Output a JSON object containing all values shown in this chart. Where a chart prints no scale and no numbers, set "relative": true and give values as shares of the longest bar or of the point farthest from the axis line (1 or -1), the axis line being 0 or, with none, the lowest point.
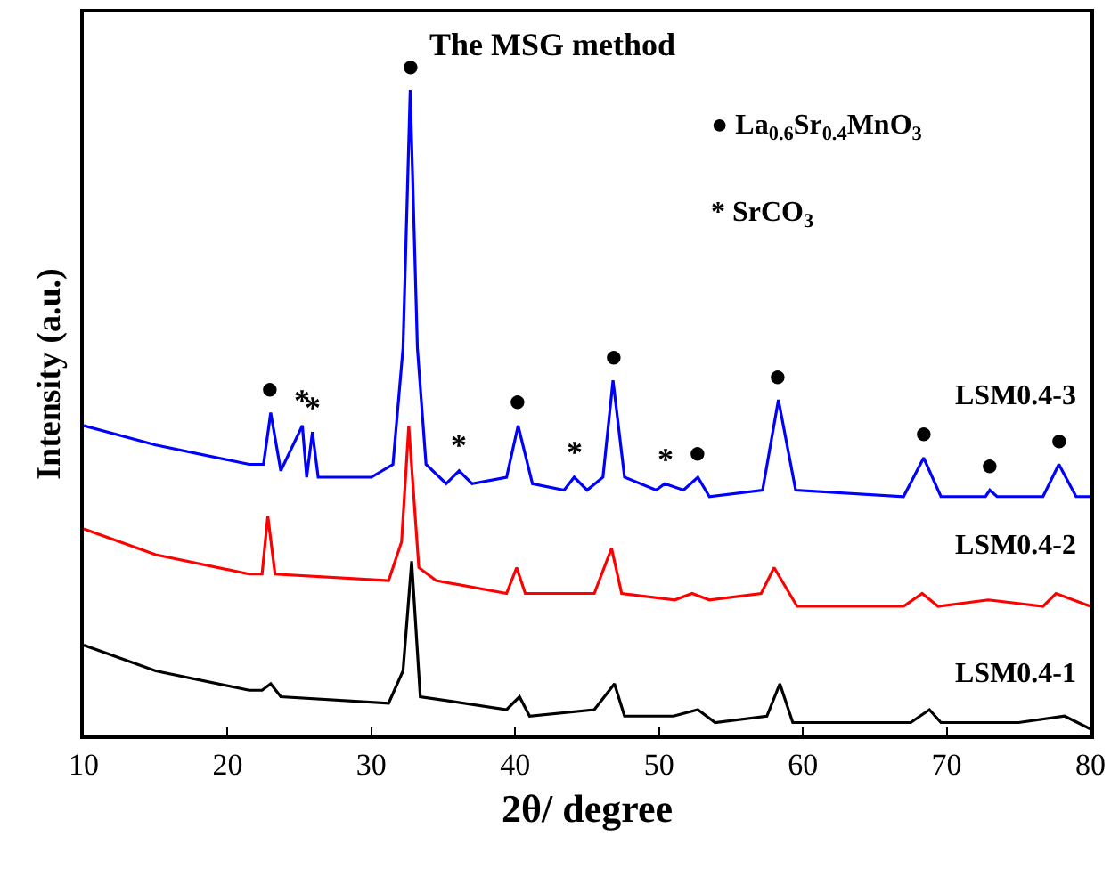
{
  "chart_data": {
    "type": "line",
    "relative": true,
    "xlabel": "2θ/ degree",
    "ylabel": "Intensity (a.u.)",
    "legend": false,
    "marker": "none",
    "line_style": "solid",
    "xlim": [
      10,
      80
    ],
    "xticks": [
      10,
      20,
      30,
      40,
      50,
      60,
      70,
      80
    ],
    "series": [
      {
        "name": "LSM0.4-3",
        "color": "#0000ff",
        "x": [
          10,
          15,
          21.5,
          22.5,
          23.0,
          23.7,
          25.2,
          25.5,
          25.9,
          26.3,
          30,
          31.5,
          32.2,
          32.7,
          33.2,
          33.8,
          35.2,
          36.1,
          37.0,
          39.4,
          40.2,
          41.2,
          43.4,
          44.1,
          45.0,
          46.1,
          46.8,
          47.6,
          49.8,
          50.4,
          51.7,
          52.7,
          53.5,
          57.2,
          58.3,
          59.5,
          67.0,
          68.4,
          69.6,
          72.7,
          73.0,
          73.5,
          76.7,
          77.8,
          79.0,
          80
        ],
        "values": [
          0.48,
          0.45,
          0.42,
          0.42,
          0.5,
          0.41,
          0.48,
          0.4,
          0.47,
          0.4,
          0.4,
          0.42,
          0.6,
          1.0,
          0.6,
          0.42,
          0.39,
          0.41,
          0.39,
          0.4,
          0.48,
          0.39,
          0.38,
          0.4,
          0.38,
          0.4,
          0.55,
          0.4,
          0.38,
          0.39,
          0.38,
          0.4,
          0.37,
          0.38,
          0.52,
          0.38,
          0.37,
          0.43,
          0.37,
          0.37,
          0.38,
          0.37,
          0.37,
          0.42,
          0.37,
          0.37
        ]
      },
      {
        "name": "LSM0.4-2",
        "color": "#ff0000",
        "x": [
          10,
          15,
          21.5,
          22.4,
          22.8,
          23.3,
          31.2,
          32.1,
          32.6,
          33.3,
          34.5,
          39.4,
          40.1,
          40.7,
          45.5,
          46.7,
          47.4,
          51.1,
          52.3,
          53.5,
          57.1,
          58.0,
          59.6,
          67.0,
          68.3,
          69.4,
          72.9,
          76.7,
          77.6,
          80
        ],
        "values": [
          0.32,
          0.28,
          0.25,
          0.25,
          0.34,
          0.25,
          0.24,
          0.3,
          0.48,
          0.26,
          0.24,
          0.22,
          0.26,
          0.22,
          0.22,
          0.29,
          0.22,
          0.21,
          0.22,
          0.21,
          0.22,
          0.26,
          0.2,
          0.2,
          0.22,
          0.2,
          0.21,
          0.2,
          0.22,
          0.2
        ]
      },
      {
        "name": "LSM0.4-1",
        "color": "#000000",
        "x": [
          10,
          15,
          21.5,
          22.4,
          23.0,
          23.7,
          31.2,
          32.2,
          32.8,
          33.4,
          39.4,
          40.3,
          41.0,
          45.5,
          46.9,
          47.6,
          51.0,
          52.7,
          53.9,
          57.5,
          58.4,
          59.3,
          67.5,
          68.8,
          69.6,
          75,
          78.2,
          80
        ],
        "values": [
          0.14,
          0.1,
          0.07,
          0.07,
          0.08,
          0.06,
          0.05,
          0.1,
          0.27,
          0.06,
          0.04,
          0.06,
          0.03,
          0.04,
          0.08,
          0.03,
          0.03,
          0.04,
          0.02,
          0.03,
          0.08,
          0.02,
          0.02,
          0.04,
          0.02,
          0.02,
          0.03,
          0.01
        ]
      }
    ],
    "annotations": [
      "The MSG method",
      "● La$_{0.6}$Sr$_{0.4}$MnO$_{3}$",
      "* SrCO$_{3}$",
      {
        "text": "●",
        "x": 23.0,
        "y": 0.5
      },
      {
        "text": "*",
        "x": 25.2,
        "y": 0.48
      },
      {
        "text": "*",
        "x": 25.9,
        "y": 0.47
      },
      {
        "text": "●",
        "x": 32.7,
        "y": 1.0
      },
      {
        "text": "*",
        "x": 36.1,
        "y": 0.41
      },
      {
        "text": "●",
        "x": 40.2,
        "y": 0.48
      },
      {
        "text": "*",
        "x": 44.1,
        "y": 0.4
      },
      {
        "text": "●",
        "x": 46.8,
        "y": 0.55
      },
      {
        "text": "*",
        "x": 50.4,
        "y": 0.39
      },
      {
        "text": "●",
        "x": 52.7,
        "y": 0.4
      },
      {
        "text": "●",
        "x": 58.3,
        "y": 0.52
      },
      {
        "text": "●",
        "x": 68.4,
        "y": 0.43
      },
      {
        "text": "●",
        "x": 73.0,
        "y": 0.38
      },
      {
        "text": "●",
        "x": 77.8,
        "y": 0.42
      }
    ]
  }
}
